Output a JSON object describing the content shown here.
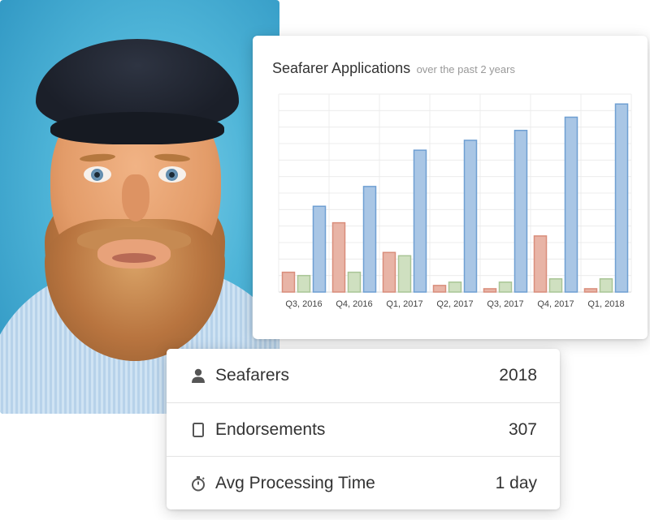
{
  "chart_data": {
    "type": "bar",
    "title": "Seafarer Applications",
    "subtitle": "over the past 2 years",
    "categories": [
      "Q3, 2016",
      "Q4, 2016",
      "Q1, 2017",
      "Q2, 2017",
      "Q3, 2017",
      "Q4, 2017",
      "Q1, 2018"
    ],
    "series": [
      {
        "values": [
          12,
          42,
          24,
          4,
          2,
          34,
          2
        ],
        "color": "#e8b4a6",
        "stroke": "#d98d7b"
      },
      {
        "values": [
          10,
          12,
          22,
          6,
          6,
          8,
          8
        ],
        "color": "#cfe0c0",
        "stroke": "#a9c596"
      },
      {
        "values": [
          52,
          64,
          86,
          92,
          98,
          106,
          114
        ],
        "color": "#a9c6e5",
        "stroke": "#6f9fd2"
      }
    ],
    "ylim": [
      0,
      120
    ],
    "grid": true,
    "legend": "none"
  },
  "stats": {
    "rows": [
      {
        "icon": "person-icon",
        "label": "Seafarers",
        "value": "2018"
      },
      {
        "icon": "document-icon",
        "label": "Endorsements",
        "value": "307"
      },
      {
        "icon": "stopwatch-icon",
        "label": "Avg Processing Time",
        "value": "1 day"
      }
    ]
  }
}
